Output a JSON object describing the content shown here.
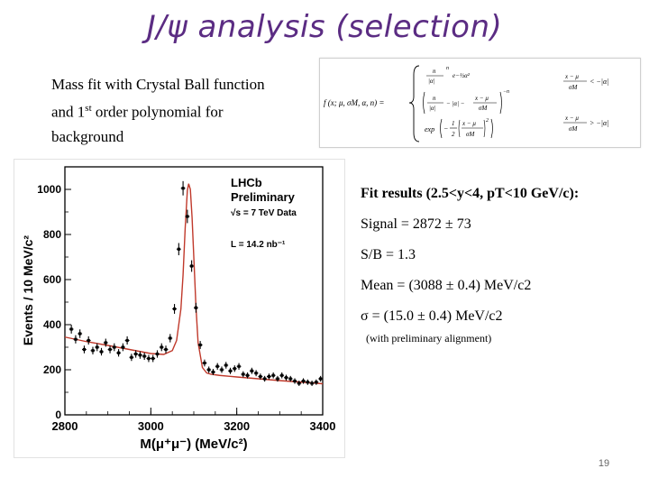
{
  "title": "J/ψ analysis (selection)",
  "description": {
    "line1": "Mass fit with Crystal Ball function",
    "line2_pre": "and 1",
    "line2_sup": "st",
    "line2_post": " order polynomial for",
    "line3": "background"
  },
  "formula": {
    "lhs": "f (x; μ, σM, α, n) =",
    "top_prefactor_num": "n",
    "top_prefactor_den": "|α|",
    "top_prefactor_exp": "n",
    "top_exp": "e−½α²",
    "top_bracket_num": "n",
    "top_bracket_den": "|α|",
    "top_bracket_minus": "− |α| −",
    "top_frac_num": "x − μ",
    "top_frac_den": "σM",
    "top_power": "−n",
    "top_cond_num": "x − μ",
    "top_cond_den": "σM",
    "top_cond_rel": "< −|α|",
    "bot_exp": "exp",
    "bot_half": "1",
    "bot_two": "2",
    "bot_frac_num": "x − μ",
    "bot_frac_den": "σM",
    "bot_cond_num": "x − μ",
    "bot_cond_den": "σM",
    "bot_cond_rel": "> −|α|"
  },
  "fit_results": {
    "header": "Fit results (2.5<y<4, pT<10 GeV/c):",
    "signal": "Signal =  2872 ± 73",
    "sb": "S/B = 1.3",
    "mean": "Mean = (3088 ± 0.4) MeV/c2",
    "sigma": "σ = (15.0 ± 0.4) MeV/c2",
    "note": "(with preliminary alignment)"
  },
  "page_number": "19",
  "colors": {
    "title": "#5b2c83",
    "fit_curve": "#c0392b",
    "points": "#000000"
  },
  "chart_data": {
    "type": "scatter",
    "title": "",
    "annotations": [
      "LHCb",
      "Preliminary",
      "√s = 7 TeV Data",
      "L = 14.2 nb⁻¹"
    ],
    "xlabel": "M(μ⁺μ⁻) (MeV/c²)",
    "ylabel": "Events / 10 MeV/c²",
    "xlim": [
      2800,
      3400
    ],
    "ylim": [
      0,
      1100
    ],
    "xticks": [
      2800,
      3000,
      3200,
      3400
    ],
    "yticks": [
      0,
      200,
      400,
      600,
      800,
      1000
    ],
    "series": [
      {
        "kind": "points",
        "x": [
          2815,
          2825,
          2835,
          2845,
          2855,
          2865,
          2875,
          2885,
          2895,
          2905,
          2915,
          2925,
          2935,
          2945,
          2955,
          2965,
          2975,
          2985,
          2995,
          3005,
          3015,
          3025,
          3035,
          3045,
          3055,
          3065,
          3075,
          3085,
          3095,
          3105,
          3115,
          3125,
          3135,
          3145,
          3155,
          3165,
          3175,
          3185,
          3195,
          3205,
          3215,
          3225,
          3235,
          3245,
          3255,
          3265,
          3275,
          3285,
          3295,
          3305,
          3315,
          3325,
          3335,
          3345,
          3355,
          3365,
          3375,
          3385,
          3395
        ],
        "y": [
          380,
          335,
          360,
          290,
          330,
          285,
          300,
          280,
          320,
          290,
          300,
          275,
          300,
          330,
          255,
          270,
          265,
          260,
          250,
          250,
          270,
          300,
          290,
          340,
          470,
          735,
          1005,
          880,
          660,
          475,
          310,
          230,
          200,
          190,
          215,
          200,
          220,
          195,
          205,
          215,
          180,
          175,
          195,
          185,
          170,
          160,
          170,
          175,
          160,
          175,
          165,
          160,
          150,
          140,
          150,
          145,
          140,
          145,
          160
        ]
      },
      {
        "kind": "fit",
        "x": [
          2800,
          2850,
          2900,
          2950,
          3000,
          3030,
          3050,
          3060,
          3070,
          3075,
          3080,
          3085,
          3088,
          3092,
          3096,
          3100,
          3105,
          3110,
          3120,
          3130,
          3140,
          3160,
          3200,
          3250,
          3300,
          3350,
          3400
        ],
        "y": [
          345,
          325,
          308,
          290,
          272,
          268,
          285,
          330,
          470,
          620,
          830,
          995,
          1025,
          1000,
          875,
          700,
          480,
          320,
          210,
          186,
          180,
          175,
          168,
          160,
          152,
          145,
          138
        ]
      }
    ]
  }
}
